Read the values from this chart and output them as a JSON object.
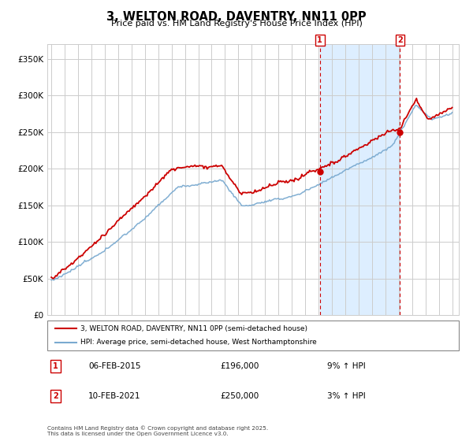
{
  "title": "3, WELTON ROAD, DAVENTRY, NN11 0PP",
  "subtitle": "Price paid vs. HM Land Registry's House Price Index (HPI)",
  "legend_line1": "3, WELTON ROAD, DAVENTRY, NN11 0PP (semi-detached house)",
  "legend_line2": "HPI: Average price, semi-detached house, West Northamptonshire",
  "footnote": "Contains HM Land Registry data © Crown copyright and database right 2025.\nThis data is licensed under the Open Government Licence v3.0.",
  "annotation1_date": "06-FEB-2015",
  "annotation1_price": "£196,000",
  "annotation1_hpi": "9% ↑ HPI",
  "annotation2_date": "10-FEB-2021",
  "annotation2_price": "£250,000",
  "annotation2_hpi": "3% ↑ HPI",
  "vline1_year": 2015.1,
  "vline2_year": 2021.1,
  "ylim": [
    0,
    370000
  ],
  "yticks": [
    0,
    50000,
    100000,
    150000,
    200000,
    250000,
    300000,
    350000
  ],
  "ytick_labels": [
    "£0",
    "£50K",
    "£100K",
    "£150K",
    "£200K",
    "£250K",
    "£300K",
    "£350K"
  ],
  "red_color": "#cc0000",
  "blue_color": "#7aaad0",
  "shade_color": "#ddeeff",
  "grid_color": "#cccccc",
  "background_color": "#ffffff",
  "xlim_left": 1994.7,
  "xlim_right": 2025.5
}
